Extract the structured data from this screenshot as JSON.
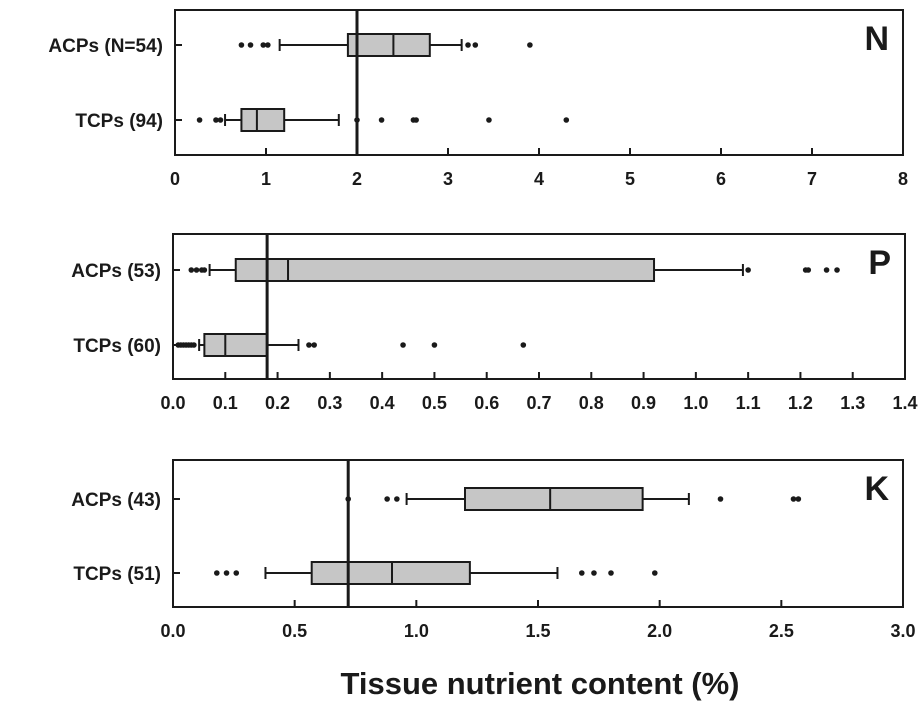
{
  "xlabel": "Tissue nutrient content (%)",
  "chart_data": [
    {
      "type": "box",
      "panel_label": "N",
      "categories": [
        "ACPs (N=54)",
        "TCPs (94)"
      ],
      "xlim": [
        0,
        8
      ],
      "xticks": [
        "0",
        "1",
        "2",
        "3",
        "4",
        "5",
        "6",
        "7",
        "8"
      ],
      "xtick_values": [
        0,
        1,
        2,
        3,
        4,
        5,
        6,
        7,
        8
      ],
      "reference_line": 2.0,
      "boxes": [
        {
          "q1": 1.9,
          "median": 2.4,
          "q3": 2.8,
          "whisker_low": 1.15,
          "whisker_high": 3.15,
          "outliers": [
            0.73,
            0.83,
            0.97,
            1.02,
            3.22,
            3.3,
            3.9
          ]
        },
        {
          "q1": 0.73,
          "median": 0.9,
          "q3": 1.2,
          "whisker_low": 0.55,
          "whisker_high": 1.8,
          "outliers": [
            0.27,
            0.45,
            0.5,
            2.0,
            2.27,
            2.62,
            2.65,
            3.45,
            4.3
          ]
        }
      ]
    },
    {
      "type": "box",
      "panel_label": "P",
      "categories": [
        "ACPs (53)",
        "TCPs (60)"
      ],
      "xlim": [
        0,
        1.4
      ],
      "xticks": [
        "0.0",
        "0.1",
        "0.2",
        "0.3",
        "0.4",
        "0.5",
        "0.6",
        "0.7",
        "0.8",
        "0.9",
        "1.0",
        "1.1",
        "1.2",
        "1.3",
        "1.4"
      ],
      "xtick_values": [
        0,
        0.1,
        0.2,
        0.3,
        0.4,
        0.5,
        0.6,
        0.7,
        0.8,
        0.9,
        1.0,
        1.1,
        1.2,
        1.3,
        1.4
      ],
      "reference_line": 0.18,
      "boxes": [
        {
          "q1": 0.12,
          "median": 0.22,
          "q3": 0.92,
          "whisker_low": 0.07,
          "whisker_high": 1.09,
          "outliers": [
            0.035,
            0.045,
            0.055,
            0.06,
            1.1,
            1.21,
            1.215,
            1.25,
            1.27
          ]
        },
        {
          "q1": 0.06,
          "median": 0.1,
          "q3": 0.18,
          "whisker_low": 0.05,
          "whisker_high": 0.24,
          "outliers": [
            0.01,
            0.015,
            0.02,
            0.025,
            0.03,
            0.035,
            0.04,
            0.26,
            0.27,
            0.44,
            0.5,
            0.67
          ]
        }
      ]
    },
    {
      "type": "box",
      "panel_label": "K",
      "categories": [
        "ACPs (43)",
        "TCPs (51)"
      ],
      "xlim": [
        0,
        3.0
      ],
      "xticks": [
        "0.0",
        "0.5",
        "1.0",
        "1.5",
        "2.0",
        "2.5",
        "3.0"
      ],
      "xtick_values": [
        0,
        0.5,
        1.0,
        1.5,
        2.0,
        2.5,
        3.0
      ],
      "reference_line": 0.72,
      "boxes": [
        {
          "q1": 1.2,
          "median": 1.55,
          "q3": 1.93,
          "whisker_low": 0.96,
          "whisker_high": 2.12,
          "outliers": [
            0.72,
            0.88,
            0.92,
            2.25,
            2.55,
            2.57
          ]
        },
        {
          "q1": 0.57,
          "median": 0.9,
          "q3": 1.22,
          "whisker_low": 0.38,
          "whisker_high": 1.58,
          "outliers": [
            0.18,
            0.22,
            0.26,
            1.68,
            1.73,
            1.8,
            1.98
          ]
        }
      ]
    }
  ]
}
